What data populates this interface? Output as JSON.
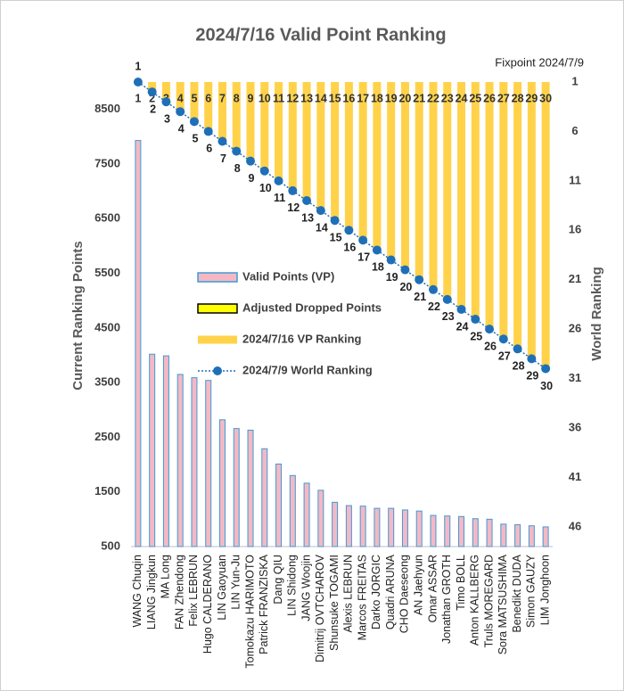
{
  "chart_data": {
    "type": "bar",
    "title": "2024/7/16 Valid Point Ranking",
    "subtitle": "Fixpoint 2024/7/9",
    "y_label": "Current Ranking Points",
    "y2_label": "World Ranking",
    "categories": [
      "WANG Chuqin",
      "LIANG Jingkun",
      "MA Long",
      "FAN Zhendong",
      "Felix LEBRUN",
      "Hugo CALDERANO",
      "LIN Gaoyuan",
      "LIN Yun-Ju",
      "Tomokazu HARIMOTO",
      "Patrick FRANZISKA",
      "Dang QIU",
      "LIN Shidong",
      "JANG Woojin",
      "Dimitrij OVTCHAROV",
      "Shunsuke TOGAMI",
      "Alexis LEBRUN",
      "Marcos FREITAS",
      "Darko JORGIC",
      "Quadri ARUNA",
      "CHO Daeseong",
      "AN Jaehyun",
      "Omar ASSAR",
      "Jonathan GROTH",
      "Timo BOLL",
      "Anton KALLBERG",
      "Truls MOREGARD",
      "Sora MATSUSHIMA",
      "Benedikt DUDA",
      "Simon GAUZY",
      "LIM Jonghoon"
    ],
    "ylim": [
      500,
      9000
    ],
    "yticks": [
      500,
      1500,
      2500,
      3500,
      4500,
      5500,
      6500,
      7500,
      8500
    ],
    "y2lim": [
      1,
      48
    ],
    "y2ticks": [
      1,
      6,
      11,
      16,
      21,
      26,
      31,
      36,
      41,
      46
    ],
    "y2_reversed": true,
    "series": [
      {
        "name": "Valid Points (VP)",
        "type": "bar",
        "color": "#f4b8c4",
        "stroke": "#3f9bd6",
        "values": [
          7930,
          4020,
          3990,
          3650,
          3590,
          3540,
          2820,
          2660,
          2630,
          2290,
          2010,
          1800,
          1660,
          1530,
          1310,
          1250,
          1240,
          1200,
          1200,
          1170,
          1150,
          1070,
          1060,
          1050,
          1010,
          1000,
          910,
          900,
          880,
          860
        ]
      },
      {
        "name": "Adjusted Dropped Points",
        "type": "bar",
        "color": "#ffff00",
        "stroke": "#000000",
        "values": [
          null,
          null,
          null,
          null,
          null,
          null,
          null,
          null,
          null,
          null,
          null,
          null,
          null,
          null,
          null,
          null,
          null,
          null,
          null,
          null,
          null,
          null,
          null,
          null,
          null,
          null,
          null,
          null,
          null,
          null
        ]
      },
      {
        "name": "2024/7/16 VP Ranking",
        "type": "bar",
        "axis": "y2",
        "color": "#ffd24a",
        "values": [
          1,
          2,
          3,
          4,
          5,
          6,
          7,
          8,
          9,
          10,
          11,
          12,
          13,
          14,
          15,
          16,
          17,
          18,
          19,
          20,
          21,
          22,
          23,
          24,
          25,
          26,
          27,
          28,
          29,
          30
        ]
      },
      {
        "name": "2024/7/9 World Ranking",
        "type": "line",
        "axis": "y2",
        "color": "#1f6fb8",
        "values": [
          1,
          2,
          3,
          4,
          5,
          6,
          7,
          8,
          9,
          10,
          11,
          12,
          13,
          14,
          15,
          16,
          17,
          18,
          19,
          20,
          21,
          22,
          23,
          24,
          25,
          26,
          27,
          28,
          29,
          30
        ]
      }
    ]
  }
}
